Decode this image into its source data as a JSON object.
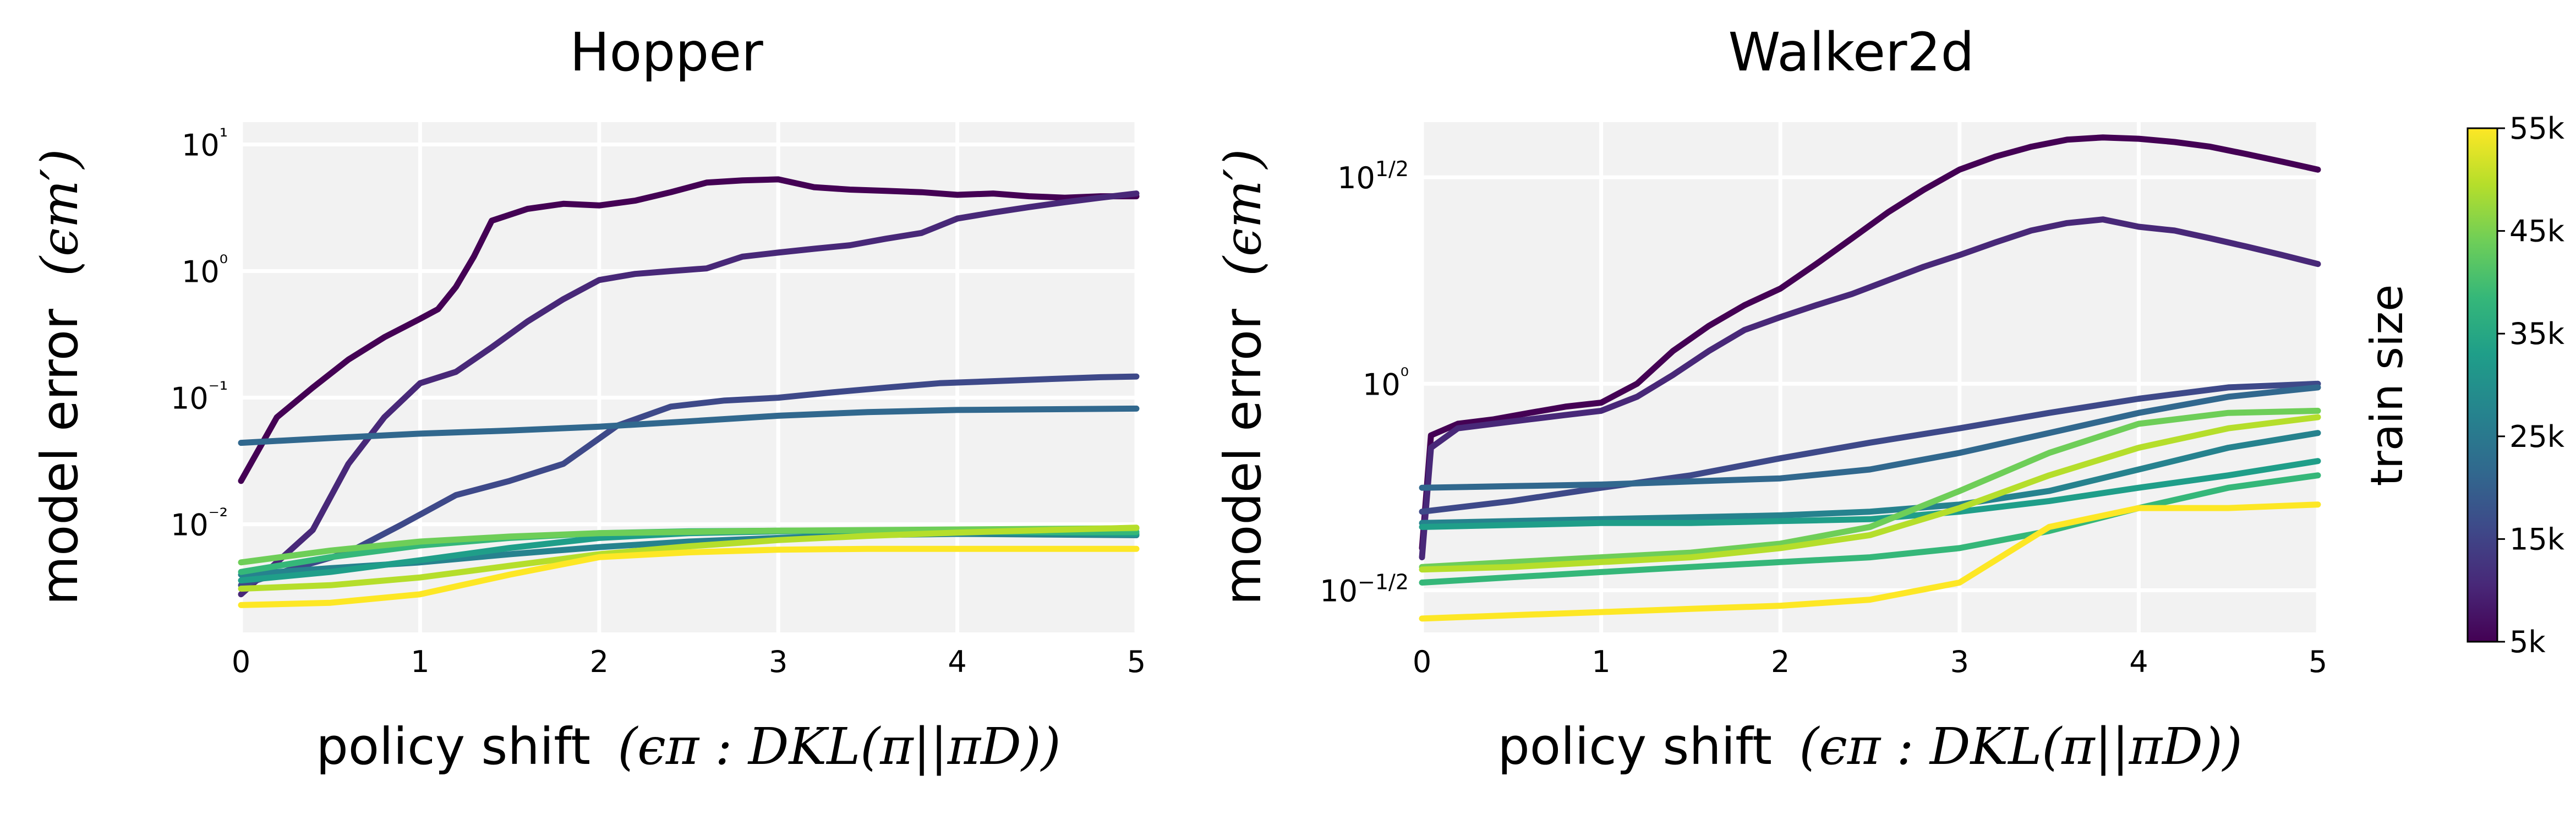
{
  "chart_data": [
    {
      "type": "line",
      "title": "Hopper",
      "xlabel_text": "policy shift",
      "xlabel_math": "(ϵπ : DKL(π||πD))",
      "ylabel_text": "model error",
      "ylabel_math": "(ϵm′)",
      "xlim": [
        0,
        5
      ],
      "ylim": [
        0.0014,
        15
      ],
      "yscale": "log",
      "grid": true,
      "xticks": [
        "0",
        "1",
        "2",
        "3",
        "4",
        "5"
      ],
      "yticks": [
        {
          "value": 10,
          "label": "10¹"
        },
        {
          "value": 1,
          "label": "10⁰"
        },
        {
          "value": 0.1,
          "label": "10⁻¹"
        },
        {
          "value": 0.01,
          "label": "10⁻²"
        }
      ],
      "series": [
        {
          "train_size": 5000,
          "color": "#440154",
          "x": [
            0,
            0.2,
            0.4,
            0.6,
            0.8,
            1.0,
            1.1,
            1.2,
            1.3,
            1.4,
            1.6,
            1.8,
            2.0,
            2.2,
            2.4,
            2.6,
            2.8,
            3.0,
            3.2,
            3.4,
            3.6,
            3.8,
            4.0,
            4.2,
            4.4,
            4.6,
            4.8,
            5.0
          ],
          "y": [
            0.022,
            0.07,
            0.12,
            0.2,
            0.3,
            0.42,
            0.5,
            0.75,
            1.3,
            2.5,
            3.1,
            3.4,
            3.3,
            3.6,
            4.2,
            5.0,
            5.2,
            5.3,
            4.6,
            4.4,
            4.3,
            4.2,
            4.0,
            4.1,
            3.9,
            3.8,
            3.9,
            3.9
          ]
        },
        {
          "train_size": 10000,
          "color": "#482878",
          "x": [
            0,
            0.2,
            0.4,
            0.6,
            0.8,
            1.0,
            1.2,
            1.4,
            1.6,
            1.8,
            2.0,
            2.2,
            2.4,
            2.6,
            2.8,
            3.0,
            3.2,
            3.4,
            3.6,
            3.8,
            4.0,
            4.2,
            4.4,
            4.6,
            4.8,
            5.0
          ],
          "y": [
            0.0028,
            0.005,
            0.009,
            0.03,
            0.07,
            0.13,
            0.16,
            0.25,
            0.4,
            0.6,
            0.85,
            0.95,
            1.0,
            1.05,
            1.3,
            1.4,
            1.5,
            1.6,
            1.8,
            2.0,
            2.6,
            2.9,
            3.2,
            3.5,
            3.8,
            4.1
          ]
        },
        {
          "train_size": 15000,
          "color": "#3e4989",
          "x": [
            0,
            0.3,
            0.6,
            0.9,
            1.2,
            1.5,
            1.8,
            2.1,
            2.4,
            2.7,
            3.0,
            3.3,
            3.6,
            3.9,
            4.2,
            4.5,
            4.8,
            5.0
          ],
          "y": [
            0.0033,
            0.0045,
            0.006,
            0.01,
            0.017,
            0.022,
            0.03,
            0.06,
            0.085,
            0.095,
            0.1,
            0.11,
            0.12,
            0.13,
            0.135,
            0.14,
            0.145,
            0.147
          ]
        },
        {
          "train_size": 20000,
          "color": "#31688e",
          "x": [
            0,
            0.5,
            1.0,
            1.5,
            2.0,
            2.5,
            3.0,
            3.5,
            4.0,
            4.5,
            5.0
          ],
          "y": [
            0.044,
            0.048,
            0.052,
            0.055,
            0.059,
            0.065,
            0.072,
            0.077,
            0.08,
            0.081,
            0.082
          ]
        },
        {
          "train_size": 25000,
          "color": "#26828e",
          "x": [
            0,
            0.5,
            1.0,
            1.5,
            2.0,
            2.5,
            3.0,
            3.5,
            4.0,
            4.5,
            5.0
          ],
          "y": [
            0.004,
            0.0045,
            0.005,
            0.0058,
            0.0066,
            0.0073,
            0.0078,
            0.0082,
            0.0084,
            0.0083,
            0.0082
          ]
        },
        {
          "train_size": 30000,
          "color": "#1f9e89",
          "x": [
            0,
            0.5,
            1.0,
            1.5,
            2.0,
            2.5,
            3.0,
            3.5,
            4.0,
            4.5,
            5.0
          ],
          "y": [
            0.0036,
            0.0042,
            0.0052,
            0.0065,
            0.0078,
            0.0085,
            0.0088,
            0.0089,
            0.0088,
            0.0086,
            0.0084
          ]
        },
        {
          "train_size": 35000,
          "color": "#35b779",
          "x": [
            0,
            0.5,
            1.0,
            1.5,
            2.0,
            2.5,
            3.0,
            3.5,
            4.0,
            4.5,
            5.0
          ],
          "y": [
            0.0042,
            0.0055,
            0.0068,
            0.0078,
            0.0085,
            0.0088,
            0.0089,
            0.0089,
            0.0088,
            0.0087,
            0.0087
          ]
        },
        {
          "train_size": 40000,
          "color": "#6ece58",
          "x": [
            0,
            0.5,
            1.0,
            1.5,
            2.0,
            2.5,
            3.0,
            3.5,
            4.0,
            4.5,
            5.0
          ],
          "y": [
            0.005,
            0.0062,
            0.0073,
            0.008,
            0.0085,
            0.0087,
            0.0089,
            0.009,
            0.0091,
            0.0092,
            0.0093
          ]
        },
        {
          "train_size": 45000,
          "color": "#b5de2b",
          "x": [
            0,
            0.5,
            1.0,
            1.5,
            2.0,
            2.5,
            3.0,
            3.5,
            4.0,
            4.5,
            5.0
          ],
          "y": [
            0.0031,
            0.0033,
            0.0038,
            0.0047,
            0.0058,
            0.0067,
            0.0075,
            0.0081,
            0.0086,
            0.009,
            0.0094
          ]
        },
        {
          "train_size": 55000,
          "color": "#fde725",
          "x": [
            0,
            0.5,
            1.0,
            1.5,
            2.0,
            2.5,
            3.0,
            3.5,
            4.0,
            4.5,
            5.0
          ],
          "y": [
            0.0023,
            0.0024,
            0.0028,
            0.004,
            0.0055,
            0.006,
            0.0063,
            0.0064,
            0.0064,
            0.0064,
            0.0064
          ]
        }
      ]
    },
    {
      "type": "line",
      "title": "Walker2d",
      "xlabel_text": "policy shift",
      "xlabel_math": "(ϵπ : DKL(π||πD))",
      "ylabel_text": "model error",
      "ylabel_math": "(ϵm′)",
      "xlim": [
        0,
        5
      ],
      "ylim": [
        0.25,
        4.3
      ],
      "yscale": "log",
      "grid": true,
      "xticks": [
        "0",
        "1",
        "2",
        "3",
        "4",
        "5"
      ],
      "yticks": [
        {
          "value": 3.1623,
          "label": "10^(1/2)"
        },
        {
          "value": 1,
          "label": "10⁰"
        },
        {
          "value": 0.3162,
          "label": "10^(−1/2)"
        }
      ],
      "series": [
        {
          "train_size": 5000,
          "color": "#440154",
          "x": [
            0,
            0.05,
            0.2,
            0.4,
            0.6,
            0.8,
            1.0,
            1.2,
            1.4,
            1.6,
            1.8,
            2.0,
            2.2,
            2.4,
            2.6,
            2.8,
            3.0,
            3.2,
            3.4,
            3.6,
            3.8,
            4.0,
            4.2,
            4.4,
            4.6,
            4.8,
            5.0
          ],
          "y": [
            0.4,
            0.75,
            0.8,
            0.82,
            0.85,
            0.88,
            0.9,
            1.0,
            1.2,
            1.38,
            1.55,
            1.7,
            1.95,
            2.25,
            2.6,
            2.95,
            3.3,
            3.55,
            3.75,
            3.9,
            3.95,
            3.92,
            3.85,
            3.75,
            3.6,
            3.45,
            3.3
          ]
        },
        {
          "train_size": 10000,
          "color": "#482878",
          "x": [
            0,
            0.05,
            0.2,
            0.4,
            0.6,
            0.8,
            1.0,
            1.2,
            1.4,
            1.6,
            1.8,
            2.0,
            2.2,
            2.4,
            2.6,
            2.8,
            3.0,
            3.2,
            3.4,
            3.6,
            3.8,
            4.0,
            4.2,
            4.4,
            4.6,
            4.8,
            5.0
          ],
          "y": [
            0.38,
            0.7,
            0.78,
            0.8,
            0.82,
            0.84,
            0.86,
            0.93,
            1.05,
            1.2,
            1.35,
            1.45,
            1.55,
            1.65,
            1.78,
            1.92,
            2.05,
            2.2,
            2.35,
            2.45,
            2.5,
            2.4,
            2.35,
            2.25,
            2.15,
            2.05,
            1.95
          ]
        },
        {
          "train_size": 15000,
          "color": "#3e4989",
          "x": [
            0,
            0.5,
            1.0,
            1.5,
            2.0,
            2.5,
            3.0,
            3.5,
            4.0,
            4.5,
            5.0
          ],
          "y": [
            0.49,
            0.52,
            0.56,
            0.6,
            0.66,
            0.72,
            0.78,
            0.85,
            0.92,
            0.98,
            1.0
          ]
        },
        {
          "train_size": 20000,
          "color": "#31688e",
          "x": [
            0,
            0.5,
            1.0,
            1.5,
            2.0,
            2.5,
            3.0,
            3.5,
            4.0,
            4.5,
            5.0
          ],
          "y": [
            0.56,
            0.565,
            0.57,
            0.58,
            0.59,
            0.62,
            0.68,
            0.76,
            0.85,
            0.93,
            0.98
          ]
        },
        {
          "train_size": 25000,
          "color": "#26828e",
          "x": [
            0,
            0.5,
            1.0,
            1.5,
            2.0,
            2.5,
            3.0,
            3.5,
            4.0,
            4.5,
            5.0
          ],
          "y": [
            0.46,
            0.465,
            0.47,
            0.475,
            0.48,
            0.49,
            0.51,
            0.55,
            0.62,
            0.7,
            0.76
          ]
        },
        {
          "train_size": 30000,
          "color": "#1f9e89",
          "x": [
            0,
            0.5,
            1.0,
            1.5,
            2.0,
            2.5,
            3.0,
            3.5,
            4.0,
            4.5,
            5.0
          ],
          "y": [
            0.45,
            0.455,
            0.46,
            0.46,
            0.465,
            0.47,
            0.49,
            0.52,
            0.56,
            0.6,
            0.65
          ]
        },
        {
          "train_size": 35000,
          "color": "#35b779",
          "x": [
            0,
            0.5,
            1.0,
            1.5,
            2.0,
            2.5,
            3.0,
            3.5,
            4.0,
            4.5,
            5.0
          ],
          "y": [
            0.33,
            0.34,
            0.35,
            0.36,
            0.37,
            0.38,
            0.4,
            0.44,
            0.5,
            0.56,
            0.6
          ]
        },
        {
          "train_size": 40000,
          "color": "#6ece58",
          "x": [
            0,
            0.5,
            1.0,
            1.5,
            2.0,
            2.5,
            3.0,
            3.5,
            4.0,
            4.5,
            5.0
          ],
          "y": [
            0.36,
            0.37,
            0.38,
            0.39,
            0.41,
            0.45,
            0.55,
            0.68,
            0.8,
            0.85,
            0.86
          ]
        },
        {
          "train_size": 45000,
          "color": "#b5de2b",
          "x": [
            0,
            0.5,
            1.0,
            1.5,
            2.0,
            2.5,
            3.0,
            3.5,
            4.0,
            4.5,
            5.0
          ],
          "y": [
            0.355,
            0.36,
            0.37,
            0.38,
            0.4,
            0.43,
            0.5,
            0.6,
            0.7,
            0.78,
            0.83
          ]
        },
        {
          "train_size": 55000,
          "color": "#fde725",
          "x": [
            0,
            0.5,
            1.0,
            1.5,
            2.0,
            2.5,
            3.0,
            3.5,
            4.0,
            4.5,
            5.0
          ],
          "y": [
            0.27,
            0.275,
            0.28,
            0.285,
            0.29,
            0.3,
            0.33,
            0.45,
            0.5,
            0.5,
            0.51
          ]
        }
      ]
    }
  ],
  "colorbar": {
    "label": "train size",
    "ticks": [
      "5k",
      "15k",
      "25k",
      "35k",
      "45k",
      "55k"
    ],
    "colors": [
      "#440154",
      "#482878",
      "#3e4989",
      "#31688e",
      "#26828e",
      "#1f9e89",
      "#35b779",
      "#6ece58",
      "#b5de2b",
      "#fde725"
    ]
  }
}
